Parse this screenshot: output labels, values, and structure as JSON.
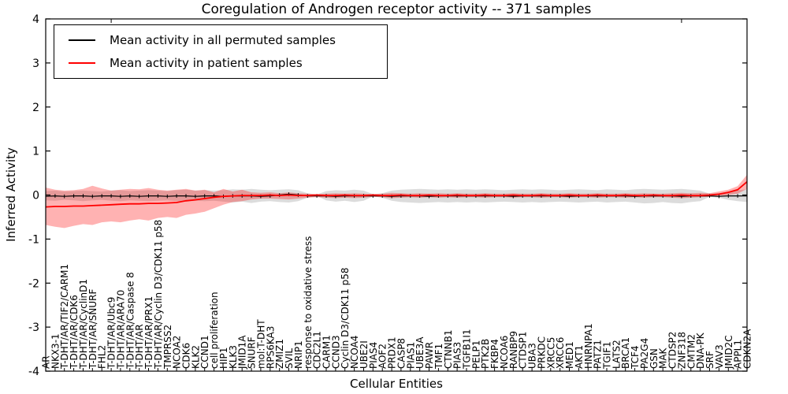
{
  "title": "Coregulation of Androgen receptor activity -- 371 samples",
  "legend": {
    "entries": [
      {
        "label": "Mean activity in all permuted samples",
        "color": "#000000"
      },
      {
        "label": "Mean activity in patient samples",
        "color": "#ff0000"
      }
    ]
  },
  "colors": {
    "background": "#ffffff",
    "frame": "#000000",
    "permuted_line": "#000000",
    "patient_line": "#ff0000",
    "permuted_band": "rgba(128,128,128,0.28)",
    "patient_band": "rgba(255,0,0,0.30)"
  },
  "chart_data": {
    "type": "line",
    "title": "Coregulation of Androgen receptor activity -- 371 samples",
    "xlabel": "Cellular Entities",
    "ylabel": "Inferred Activity",
    "ylim": [
      -4,
      4
    ],
    "yticks": [
      4,
      3,
      2,
      1,
      0,
      -1,
      -2,
      -3,
      -4
    ],
    "grid": false,
    "legend_position": "upper left",
    "x_tick_label_rotation": 90,
    "categories": [
      "AR",
      "NKX3-1",
      "T-DHT/AR/TIF2/CARM1",
      "T-DHT/AR/CDK6",
      "T-DHT/AR/CyclinD1",
      "T-DHT/AR/SNURF",
      "FHL2",
      "T-DHT/AR/Ubc9",
      "T-DHT/AR/ARA70",
      "T-DHT/AR/Caspase 8",
      "T-DHT/AR",
      "T-DHT/AR/PRX1",
      "T-DHT/AR/Cyclin D3/CDK11 p58",
      "TMPRSS2",
      "NCOA2",
      "CDK6",
      "KLK2",
      "CCND1",
      "cell proliferation",
      "HIP1",
      "KLK3",
      "JMID1A",
      "SNURF",
      "mol:T-DHT",
      "RPS6KA3",
      "ZMIZ1",
      "SVIL",
      "NRIP1",
      "response to oxidative stress",
      "CDC2L1",
      "CARM1",
      "CCND3",
      "Cyclin D3/CDK11 p58",
      "NCOA4",
      "UBE2I",
      "PIAS4",
      "AOF2",
      "PRDX1",
      "CASP8",
      "PIAS1",
      "UBE3A",
      "PAWR",
      "TMF1",
      "CTNNB1",
      "PIAS3",
      "TGFB1I1",
      "PELP1",
      "PTK2B",
      "FKBP4",
      "NCOA6",
      "RANBP9",
      "CTDSP1",
      "UBA3",
      "PRKDC",
      "XRCC5",
      "XRCC6",
      "MED1",
      "AKT1",
      "HNRNPA1",
      "PATZ1",
      "TGIF1",
      "LATS2",
      "BRCA1",
      "TCF4",
      "PA2G4",
      "GSN",
      "MAK",
      "CTDSP2",
      "ZNF318",
      "CMTM2",
      "DNA-PK",
      "SRF",
      "VAV3",
      "JMID2C",
      "APPL1",
      "CDKN2A"
    ],
    "series": [
      {
        "name": "Mean activity in all permuted samples",
        "color": "#000000",
        "values": [
          -0.03,
          -0.02,
          -0.03,
          -0.02,
          -0.02,
          -0.03,
          -0.02,
          -0.02,
          -0.03,
          -0.02,
          -0.03,
          -0.02,
          -0.02,
          -0.03,
          -0.02,
          -0.02,
          -0.03,
          -0.02,
          -0.02,
          -0.03,
          -0.02,
          -0.02,
          -0.02,
          -0.03,
          -0.02,
          0.0,
          0.02,
          0.0,
          -0.02,
          -0.02,
          -0.02,
          -0.03,
          -0.02,
          -0.02,
          -0.02,
          -0.02,
          -0.02,
          -0.03,
          -0.02,
          -0.02,
          -0.02,
          -0.03,
          -0.02,
          -0.02,
          -0.02,
          -0.02,
          -0.02,
          -0.02,
          -0.02,
          -0.02,
          -0.03,
          -0.02,
          -0.02,
          -0.02,
          -0.02,
          -0.02,
          -0.03,
          -0.02,
          -0.02,
          -0.02,
          -0.02,
          -0.02,
          -0.02,
          -0.03,
          -0.02,
          -0.02,
          -0.02,
          -0.02,
          -0.03,
          -0.02,
          -0.02,
          -0.02,
          -0.03,
          -0.02,
          -0.02,
          -0.02
        ]
      },
      {
        "name": "Mean activity in patient samples",
        "color": "#ff0000",
        "values": [
          -0.27,
          -0.26,
          -0.26,
          -0.25,
          -0.25,
          -0.24,
          -0.23,
          -0.22,
          -0.21,
          -0.2,
          -0.2,
          -0.19,
          -0.19,
          -0.18,
          -0.17,
          -0.13,
          -0.11,
          -0.08,
          -0.05,
          -0.03,
          -0.02,
          -0.01,
          -0.01,
          -0.01,
          0.0,
          -0.01,
          0.0,
          -0.01,
          -0.01,
          0.0,
          -0.01,
          -0.01,
          0.0,
          -0.01,
          -0.01,
          0.0,
          -0.01,
          -0.01,
          0.0,
          -0.01,
          -0.01,
          0.0,
          -0.01,
          -0.01,
          0.0,
          -0.01,
          -0.01,
          0.0,
          -0.01,
          -0.01,
          0.0,
          -0.01,
          -0.01,
          0.0,
          -0.01,
          -0.01,
          0.0,
          -0.01,
          -0.01,
          0.0,
          -0.01,
          -0.01,
          0.0,
          -0.01,
          -0.01,
          0.0,
          -0.01,
          -0.01,
          0.0,
          -0.01,
          -0.01,
          0.0,
          0.02,
          0.06,
          0.12,
          0.3
        ]
      }
    ],
    "bands": [
      {
        "name": "permuted-range",
        "color": "rgba(128,128,128,0.28)",
        "upper": [
          0.09,
          0.1,
          0.08,
          0.09,
          0.1,
          0.09,
          0.08,
          0.1,
          0.11,
          0.09,
          0.1,
          0.11,
          0.1,
          0.09,
          0.11,
          0.12,
          0.1,
          0.11,
          0.1,
          0.11,
          0.13,
          0.12,
          0.14,
          0.12,
          0.11,
          0.12,
          0.13,
          0.11,
          0.04,
          0.01,
          0.09,
          0.11,
          0.1,
          0.12,
          0.1,
          0.02,
          0.04,
          0.1,
          0.12,
          0.13,
          0.14,
          0.13,
          0.12,
          0.13,
          0.12,
          0.13,
          0.12,
          0.13,
          0.12,
          0.11,
          0.12,
          0.13,
          0.12,
          0.13,
          0.12,
          0.11,
          0.12,
          0.13,
          0.12,
          0.11,
          0.13,
          0.12,
          0.11,
          0.13,
          0.14,
          0.13,
          0.12,
          0.13,
          0.14,
          0.12,
          0.1,
          0.03,
          0.04,
          0.08,
          0.11,
          0.13
        ],
        "lower": [
          -0.12,
          -0.13,
          -0.11,
          -0.12,
          -0.14,
          -0.12,
          -0.11,
          -0.13,
          -0.14,
          -0.12,
          -0.13,
          -0.14,
          -0.13,
          -0.12,
          -0.14,
          -0.15,
          -0.13,
          -0.14,
          -0.13,
          -0.15,
          -0.17,
          -0.15,
          -0.18,
          -0.15,
          -0.14,
          -0.16,
          -0.17,
          -0.14,
          -0.06,
          -0.02,
          -0.12,
          -0.15,
          -0.13,
          -0.16,
          -0.13,
          -0.03,
          -0.06,
          -0.13,
          -0.16,
          -0.17,
          -0.18,
          -0.17,
          -0.16,
          -0.17,
          -0.16,
          -0.17,
          -0.16,
          -0.17,
          -0.16,
          -0.15,
          -0.16,
          -0.17,
          -0.16,
          -0.17,
          -0.16,
          -0.15,
          -0.16,
          -0.17,
          -0.16,
          -0.15,
          -0.17,
          -0.16,
          -0.15,
          -0.17,
          -0.19,
          -0.18,
          -0.16,
          -0.18,
          -0.19,
          -0.16,
          -0.14,
          -0.04,
          -0.06,
          -0.11,
          -0.14,
          -0.16
        ]
      },
      {
        "name": "patient-range",
        "color": "rgba(255,0,0,0.30)",
        "upper": [
          0.17,
          0.12,
          0.1,
          0.11,
          0.14,
          0.21,
          0.15,
          0.1,
          0.12,
          0.14,
          0.13,
          0.16,
          0.12,
          0.1,
          0.12,
          0.14,
          0.1,
          0.12,
          0.06,
          0.14,
          0.08,
          0.12,
          0.06,
          0.05,
          0.06,
          0.04,
          0.06,
          0.04,
          0.03,
          0.02,
          0.03,
          0.04,
          0.03,
          0.04,
          0.03,
          0.02,
          0.03,
          0.05,
          0.04,
          0.03,
          0.04,
          0.03,
          0.04,
          0.03,
          0.04,
          0.03,
          0.03,
          0.04,
          0.03,
          0.03,
          0.04,
          0.03,
          0.03,
          0.04,
          0.03,
          0.03,
          0.04,
          0.03,
          0.03,
          0.04,
          0.03,
          0.03,
          0.04,
          0.03,
          0.04,
          0.03,
          0.03,
          0.04,
          0.05,
          0.04,
          0.05,
          0.04,
          0.08,
          0.12,
          0.2,
          0.46
        ],
        "lower": [
          -0.68,
          -0.72,
          -0.75,
          -0.7,
          -0.66,
          -0.68,
          -0.62,
          -0.6,
          -0.62,
          -0.58,
          -0.55,
          -0.58,
          -0.52,
          -0.5,
          -0.52,
          -0.45,
          -0.42,
          -0.38,
          -0.3,
          -0.22,
          -0.16,
          -0.14,
          -0.1,
          -0.08,
          -0.08,
          -0.09,
          -0.1,
          -0.08,
          -0.06,
          -0.05,
          -0.06,
          -0.07,
          -0.06,
          -0.07,
          -0.06,
          -0.04,
          -0.05,
          -0.07,
          -0.06,
          -0.05,
          -0.06,
          -0.05,
          -0.06,
          -0.05,
          -0.06,
          -0.05,
          -0.05,
          -0.06,
          -0.05,
          -0.05,
          -0.06,
          -0.05,
          -0.05,
          -0.06,
          -0.05,
          -0.05,
          -0.06,
          -0.05,
          -0.05,
          -0.06,
          -0.05,
          -0.05,
          -0.06,
          -0.05,
          -0.06,
          -0.05,
          -0.05,
          -0.06,
          -0.07,
          -0.06,
          -0.05,
          -0.04,
          -0.02,
          0.0,
          0.03,
          0.14
        ]
      }
    ]
  }
}
